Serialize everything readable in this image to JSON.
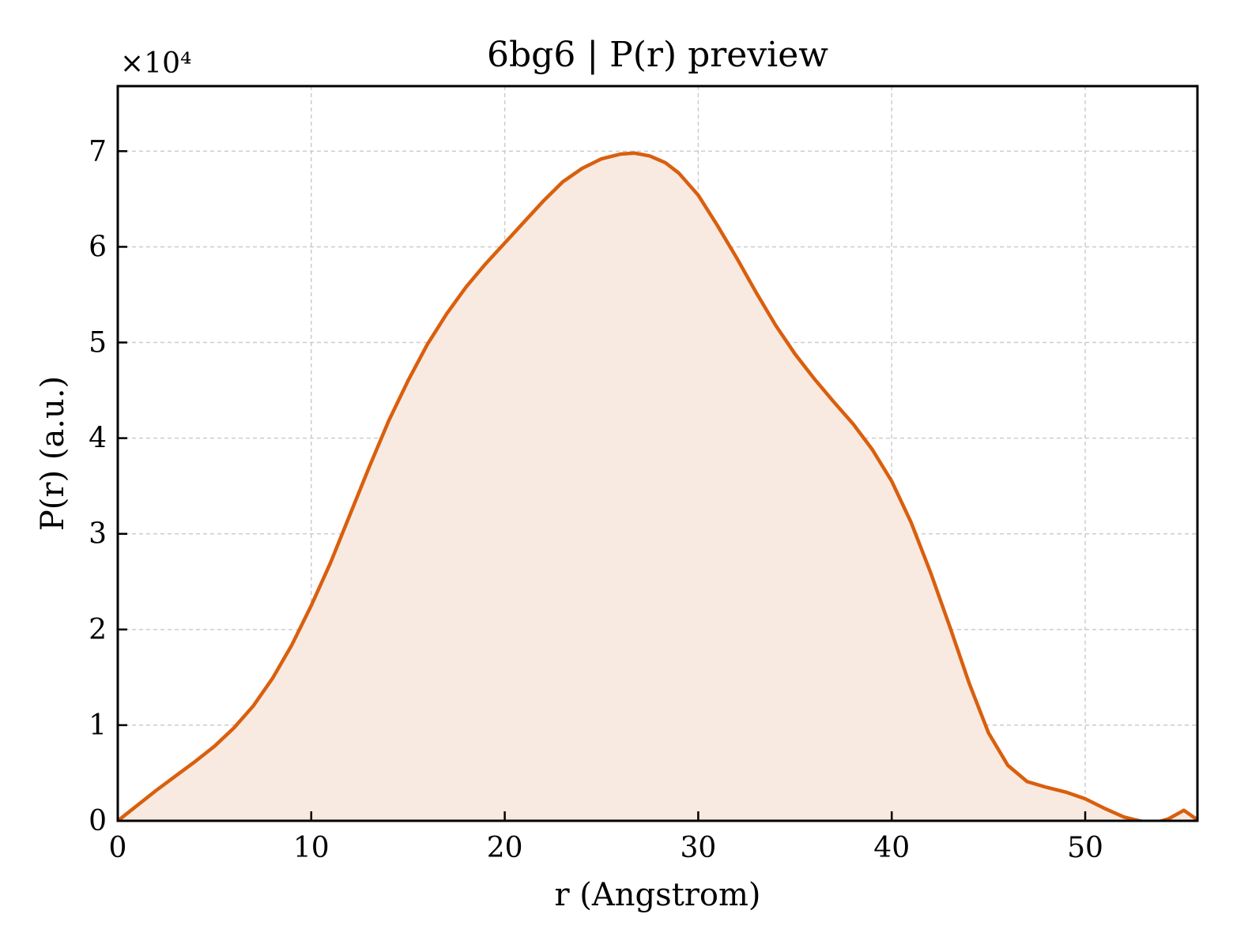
{
  "chart_data": {
    "type": "area",
    "title": "6bg6 | P(r) preview",
    "xlabel": "r (Angstrom)",
    "ylabel": "P(r) (a.u.)",
    "y_multiplier": "×10⁴",
    "xlim": [
      0,
      55.8
    ],
    "ylim": [
      0,
      76800
    ],
    "xticks": [
      0,
      10,
      20,
      30,
      40,
      50
    ],
    "yticks": [
      0,
      10000,
      20000,
      30000,
      40000,
      50000,
      60000,
      70000
    ],
    "ytick_labels": [
      "0",
      "1",
      "2",
      "3",
      "4",
      "5",
      "6",
      "7"
    ],
    "grid": true,
    "grid_style": "dashed",
    "legend": "none",
    "line_color": "#d95f0e",
    "fill_color": "#f8eae0",
    "series": [
      {
        "x": [
          0,
          0.5,
          1,
          2,
          3,
          4,
          5,
          6,
          7,
          8,
          9,
          10,
          11,
          12,
          13,
          14,
          15,
          16,
          17,
          18,
          19,
          20,
          21,
          22,
          23,
          24,
          25,
          26,
          26.7,
          27.5,
          28.3,
          29,
          30,
          31,
          32,
          33,
          34,
          35,
          36,
          37,
          38,
          39,
          40,
          41,
          42,
          43,
          44,
          45,
          46,
          47,
          48,
          49,
          50,
          51,
          52,
          52.8,
          53.5,
          54.3,
          55.1,
          55.8
        ],
        "y": [
          0,
          800,
          1600,
          3200,
          4700,
          6200,
          7800,
          9700,
          12000,
          14900,
          18400,
          22500,
          27000,
          32000,
          37000,
          41800,
          46000,
          49800,
          53000,
          55800,
          58200,
          60400,
          62600,
          64800,
          66800,
          68200,
          69200,
          69700,
          69800,
          69500,
          68800,
          67700,
          65400,
          62200,
          58800,
          55200,
          51800,
          48800,
          46200,
          43800,
          41500,
          38800,
          35500,
          31200,
          26000,
          20300,
          14400,
          9200,
          5800,
          4100,
          3500,
          3000,
          2300,
          1300,
          400,
          0,
          -300,
          200,
          1100,
          100
        ]
      }
    ]
  }
}
